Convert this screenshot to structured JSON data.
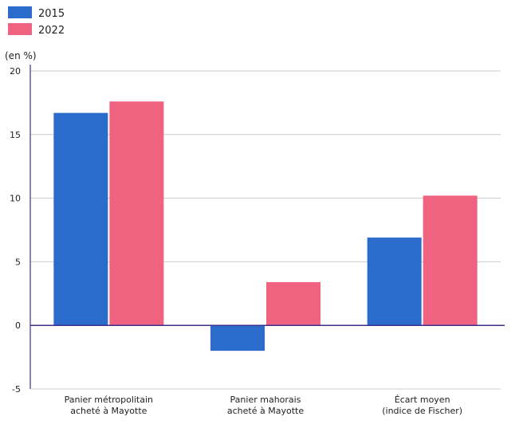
{
  "chart_data": {
    "type": "bar",
    "title": "",
    "unit_label": "(en %)",
    "categories": [
      [
        "Panier métropolitain",
        "acheté à Mayotte"
      ],
      [
        "Panier mahorais",
        "acheté à Mayotte"
      ],
      [
        "Écart moyen",
        "(indice de Fischer)"
      ]
    ],
    "series": [
      {
        "name": "2015",
        "color": "#2b6bcc",
        "values": [
          16.7,
          -2.0,
          6.9
        ]
      },
      {
        "name": "2022",
        "color": "#ef6381",
        "values": [
          17.6,
          3.4,
          10.2
        ]
      }
    ],
    "ylim": [
      -5,
      20
    ],
    "yticks": [
      -5,
      0,
      5,
      10,
      15,
      20
    ],
    "grid": true,
    "legend_position": "top-left",
    "axis_color": "#3a2f8f",
    "grid_color": "#cccccc"
  }
}
